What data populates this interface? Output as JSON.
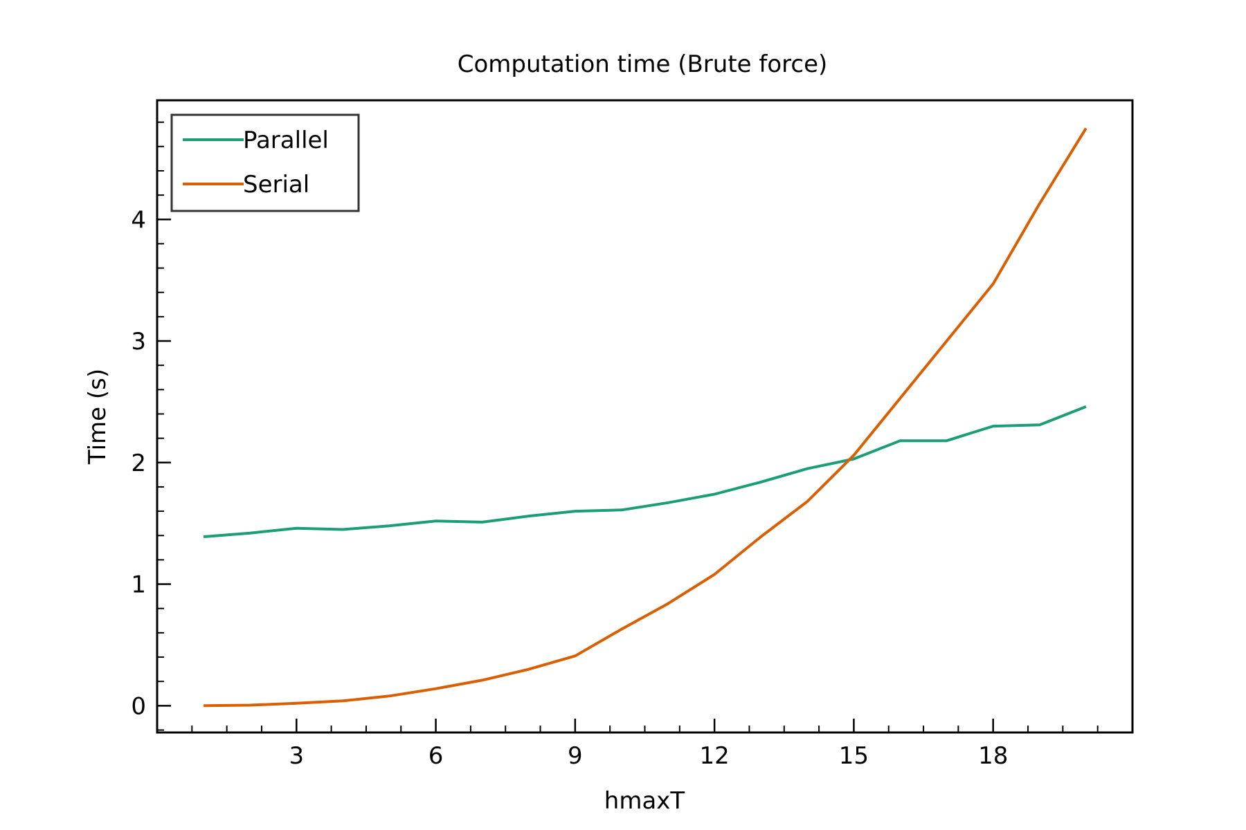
{
  "chart_data": {
    "type": "line",
    "title": "Computation time (Brute force)",
    "xlabel": "hmaxT",
    "ylabel": "Time (s)",
    "xlim": [
      0.0,
      21.0
    ],
    "ylim": [
      -0.22,
      4.98
    ],
    "xticks": [
      3,
      6,
      9,
      12,
      15,
      18
    ],
    "yticks": [
      0,
      1,
      2,
      3,
      4
    ],
    "x_minor_step": 0.75,
    "y_minor_step": 0.2,
    "grid": false,
    "legend_position": "top-left",
    "x": [
      1,
      2,
      3,
      4,
      5,
      6,
      7,
      8,
      9,
      10,
      11,
      12,
      13,
      14,
      15,
      16,
      17,
      18,
      19,
      20
    ],
    "series": [
      {
        "name": "Parallel",
        "color": "#1b9e77",
        "values": [
          1.39,
          1.42,
          1.46,
          1.45,
          1.48,
          1.52,
          1.51,
          1.56,
          1.6,
          1.61,
          1.67,
          1.74,
          1.84,
          1.95,
          2.03,
          2.18,
          2.18,
          2.3,
          2.31,
          2.46
        ]
      },
      {
        "name": "Serial",
        "color": "#d95f02",
        "values": [
          0.0,
          0.005,
          0.02,
          0.04,
          0.08,
          0.14,
          0.21,
          0.3,
          0.41,
          0.63,
          0.84,
          1.08,
          1.39,
          1.68,
          2.06,
          2.53,
          3.0,
          3.47,
          4.13,
          4.75
        ]
      }
    ]
  }
}
